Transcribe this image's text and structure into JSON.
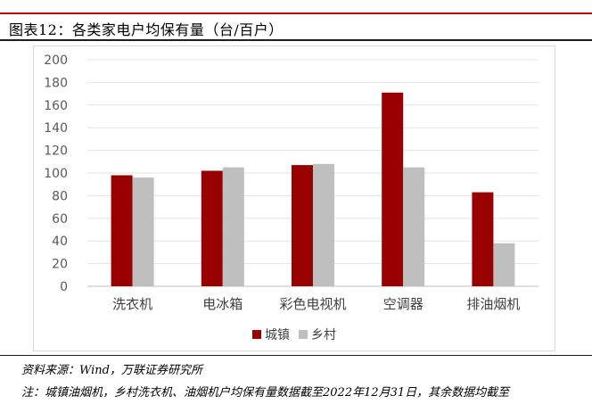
{
  "figure": {
    "title": "图表12：各类家电户均保有量（台/百户）",
    "source": "资料来源：Wind，万联证券研究所",
    "note": "注：城镇油烟机，乡村洗衣机、油烟机户均保有量数据截至2022年12月31日，其余数据均截至"
  },
  "colors": {
    "accent_rule": "#c00000",
    "urban": "#990000",
    "rural": "#bfbfbf"
  },
  "chart_data": {
    "type": "bar",
    "categories": [
      "洗衣机",
      "电冰箱",
      "彩色电视机",
      "空调器",
      "排油烟机"
    ],
    "series": [
      {
        "name": "城镇",
        "values": [
          98,
          102,
          107,
          171,
          83
        ]
      },
      {
        "name": "乡村",
        "values": [
          96,
          105,
          108,
          105,
          38
        ]
      }
    ],
    "ylim": [
      0,
      200
    ],
    "yticks": [
      0,
      20,
      40,
      60,
      80,
      100,
      120,
      140,
      160,
      180,
      200
    ],
    "grid": true,
    "legend": "bottom-center"
  }
}
